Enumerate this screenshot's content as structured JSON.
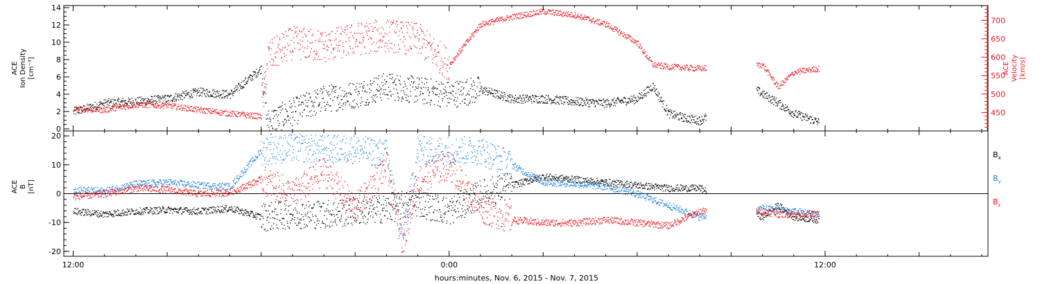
{
  "xaxis": {
    "title": "hours:minutes, Nov.  6, 2015 - Nov.  7, 2015",
    "range_hours": [
      -12.3,
      17.2
    ],
    "tick_hours": [
      -12,
      0,
      12
    ],
    "tick_labels": [
      "12:00",
      "0:00",
      "12:00"
    ]
  },
  "colors": {
    "black": "#000000",
    "red": "#e8141c",
    "blue": "#1e7fd8"
  },
  "chart_data": [
    {
      "type": "scatter",
      "panel": "top",
      "ylabel_left": [
        "ACE",
        "Ion Density",
        "[cm⁻³]"
      ],
      "ylabel_right": [
        "ACE",
        "Velocity",
        "[km/s]"
      ],
      "ylim_left": [
        0,
        14
      ],
      "yticks_left": [
        0,
        2,
        4,
        6,
        8,
        10,
        12,
        14
      ],
      "ylim_right": [
        400,
        740
      ],
      "yticks_right": [
        450,
        500,
        550,
        600,
        650,
        700
      ],
      "grid": false,
      "series": [
        {
          "color": "black",
          "axis": "left",
          "x": [
            -12.0,
            -11.0,
            -10.0,
            -9.0,
            -8.0,
            -7.0,
            -6.0,
            -5.8,
            -5.0,
            -4.0,
            -3.0,
            -2.0,
            -1.0,
            0.0,
            1.0,
            2.0,
            3.0,
            4.0,
            5.0,
            6.0,
            6.5,
            7.0,
            7.5,
            8.0,
            9.8,
            10.5,
            11.0,
            11.8
          ],
          "y": [
            2.0,
            3.0,
            3.2,
            3.5,
            4.3,
            4.0,
            7.0,
            0.8,
            2.0,
            3.5,
            4.0,
            5.0,
            4.5,
            4.0,
            4.6,
            3.5,
            3.5,
            3.2,
            3.0,
            3.5,
            5.0,
            1.8,
            1.3,
            1.0,
            4.5,
            3.0,
            1.8,
            0.8
          ]
        },
        {
          "color": "red",
          "axis": "right",
          "x": [
            -12.0,
            -11.0,
            -10.0,
            -9.0,
            -8.0,
            -7.0,
            -6.0,
            -5.8,
            -5.0,
            -4.0,
            -3.0,
            -2.0,
            -1.0,
            0.0,
            1.0,
            2.0,
            3.0,
            4.0,
            5.0,
            6.0,
            6.5,
            7.0,
            8.0,
            10.0,
            10.5,
            11.0,
            11.8
          ],
          "y": [
            460,
            458,
            472,
            470,
            458,
            448,
            440,
            600,
            640,
            630,
            650,
            660,
            650,
            580,
            690,
            710,
            725,
            715,
            690,
            640,
            580,
            575,
            570,
            580,
            520,
            560,
            570
          ]
        }
      ]
    },
    {
      "type": "scatter",
      "panel": "bottom",
      "ylabel_left": [
        "ACE",
        "B",
        "[nT]"
      ],
      "ylim": [
        -21,
        21
      ],
      "yticks": [
        -20,
        -10,
        0,
        10,
        20
      ],
      "zero_line": true,
      "grid": false,
      "legend_position": "right",
      "series": [
        {
          "name": "B",
          "subscript": "x",
          "color": "black",
          "x": [
            -12.0,
            -11.0,
            -10.0,
            -9.0,
            -8.0,
            -7.0,
            -6.0,
            -5.0,
            -4.0,
            -3.0,
            -2.0,
            -1.0,
            0.0,
            1.0,
            2.0,
            3.0,
            4.0,
            5.0,
            6.0,
            7.0,
            8.0,
            10.0,
            10.5,
            11.0,
            11.8
          ],
          "y": [
            -6.0,
            -7.0,
            -6.0,
            -5.5,
            -6.0,
            -5.0,
            -8.0,
            -7.0,
            -7.0,
            -6.0,
            -5.0,
            -3.0,
            -6.0,
            0.0,
            3.0,
            6.0,
            5.0,
            4.0,
            3.0,
            2.0,
            2.0,
            -8.0,
            -4.0,
            -8.0,
            -9.0
          ]
        },
        {
          "name": "B",
          "subscript": "y",
          "color": "blue",
          "x": [
            -12.0,
            -11.0,
            -10.0,
            -9.0,
            -8.0,
            -7.0,
            -6.0,
            -5.0,
            -4.0,
            -3.0,
            -2.0,
            -1.5,
            -1.0,
            0.0,
            1.0,
            2.0,
            3.0,
            4.0,
            5.0,
            6.0,
            7.0,
            8.0,
            10.0,
            11.0,
            11.8
          ],
          "y": [
            1.5,
            1.0,
            3.5,
            4.0,
            3.0,
            2.5,
            15.0,
            16.0,
            15.5,
            15.5,
            14.0,
            -16.0,
            15.0,
            15.0,
            15.0,
            10.0,
            4.0,
            3.5,
            2.5,
            0.0,
            -4.0,
            -8.0,
            -5.0,
            -6.0,
            -7.0
          ]
        },
        {
          "name": "B",
          "subscript": "z",
          "color": "red",
          "x": [
            -12.0,
            -11.0,
            -10.0,
            -9.0,
            -8.0,
            -7.0,
            -6.0,
            -5.0,
            -4.0,
            -3.0,
            -2.0,
            -1.5,
            -1.0,
            0.0,
            0.5,
            1.0,
            2.0,
            3.0,
            4.0,
            5.0,
            6.0,
            7.0,
            8.0,
            10.0,
            10.5,
            11.0,
            11.8
          ],
          "y": [
            -1.0,
            0.0,
            2.0,
            1.5,
            0.0,
            0.5,
            5.0,
            0.0,
            8.0,
            -5.0,
            10.0,
            -17.0,
            5.0,
            10.0,
            2.0,
            -5.0,
            -9.0,
            -10.0,
            -10.0,
            -9.0,
            -10.0,
            -11.0,
            -6.0,
            -6.0,
            -7.0,
            -7.0,
            -7.0
          ]
        }
      ]
    }
  ]
}
